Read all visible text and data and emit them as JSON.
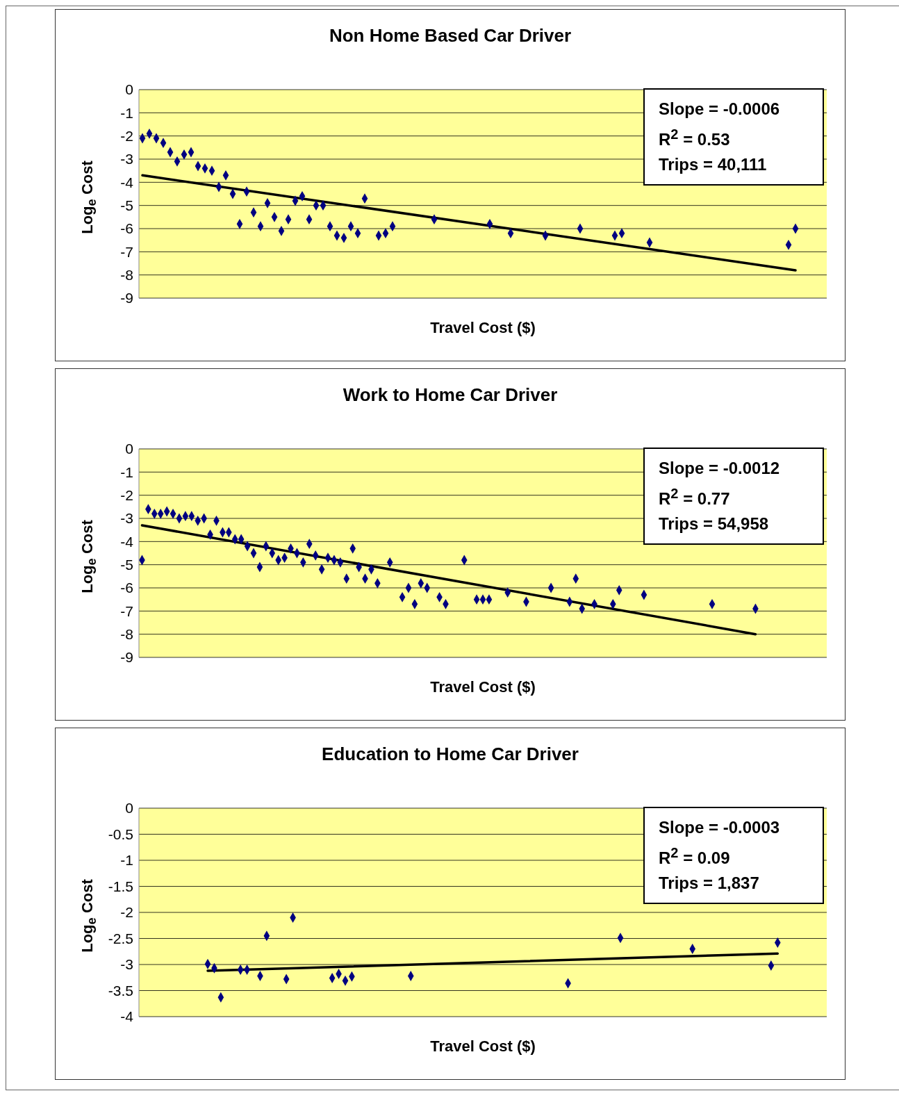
{
  "chart_data": [
    {
      "type": "scatter",
      "title": "Non Home Based Car Driver",
      "xlabel": "Travel Cost ($)",
      "ylabel": "Log$_{e}$ Cost",
      "annotations": [
        "Slope = -0.0006",
        "R$^{2}$ = 0.53",
        "Trips = 40,111"
      ],
      "ylim": [
        -9,
        0
      ],
      "yticks": [
        -9,
        -8,
        -7,
        -6,
        -5,
        -4,
        -3,
        -2,
        -1,
        0
      ],
      "grid": "y",
      "legend": false,
      "tick_labels": "y",
      "categories": [
        null,
        null,
        null,
        null,
        null,
        null,
        null,
        null,
        null,
        null,
        null,
        null,
        null,
        null,
        null,
        null,
        null,
        null,
        null,
        null,
        null,
        null,
        null,
        null,
        null,
        null,
        null,
        null,
        null,
        null,
        null,
        null,
        null,
        null,
        null,
        null,
        null,
        null,
        null,
        null,
        null,
        null,
        null,
        null,
        null,
        null,
        null,
        null,
        null,
        null,
        null,
        null,
        null,
        null,
        null,
        null,
        null,
        null,
        null,
        null,
        null,
        null,
        null,
        null,
        null,
        null,
        null,
        null,
        null,
        null,
        null,
        null,
        null,
        null,
        null,
        null,
        null,
        null,
        null,
        null,
        null,
        null,
        null,
        null,
        null,
        null,
        null,
        null,
        null,
        null,
        null,
        null,
        null,
        null,
        null,
        null,
        null,
        null,
        null
      ],
      "series": [
        {
          "type": "scatter",
          "marker": "diamond",
          "color": "#000080",
          "values": [
            -2.1,
            -1.9,
            -2.1,
            -2.3,
            -2.7,
            -3.1,
            -2.8,
            -2.7,
            -3.3,
            -3.4,
            -3.5,
            -4.2,
            -3.7,
            -4.5,
            -5.8,
            -4.4,
            -5.3,
            -5.9,
            -4.9,
            -5.5,
            -6.1,
            -5.6,
            -4.8,
            -4.6,
            -5.6,
            -5.0,
            -5.0,
            -5.9,
            -6.3,
            -6.4,
            -5.9,
            -6.2,
            -4.7,
            null,
            -6.3,
            -6.2,
            -5.9,
            null,
            null,
            null,
            null,
            null,
            -5.6,
            null,
            null,
            null,
            null,
            null,
            null,
            null,
            -5.8,
            null,
            null,
            -6.2,
            null,
            null,
            null,
            null,
            -6.3,
            null,
            null,
            null,
            null,
            -6.0,
            null,
            null,
            null,
            null,
            -6.3,
            -6.2,
            null,
            null,
            null,
            -6.6,
            null,
            null,
            null,
            null,
            null,
            null,
            null,
            null,
            null,
            null,
            null,
            null,
            null,
            null,
            null,
            null,
            null,
            null,
            null,
            -6.7,
            -6.0,
            null,
            null,
            null,
            null
          ]
        },
        {
          "type": "line",
          "color": "#000000",
          "values": [
            -3.7,
            null,
            null,
            null,
            null,
            null,
            null,
            null,
            null,
            null,
            null,
            null,
            null,
            null,
            null,
            null,
            null,
            null,
            null,
            null,
            null,
            null,
            null,
            null,
            null,
            null,
            null,
            null,
            null,
            null,
            null,
            null,
            null,
            null,
            null,
            null,
            null,
            null,
            null,
            null,
            null,
            null,
            null,
            null,
            null,
            null,
            null,
            null,
            null,
            null,
            null,
            null,
            null,
            null,
            null,
            null,
            null,
            null,
            null,
            null,
            null,
            null,
            null,
            null,
            null,
            null,
            null,
            null,
            null,
            null,
            null,
            null,
            null,
            null,
            null,
            null,
            null,
            null,
            null,
            null,
            null,
            null,
            null,
            null,
            null,
            null,
            null,
            null,
            null,
            null,
            null,
            null,
            null,
            null,
            -7.8,
            null,
            null,
            null,
            null
          ]
        }
      ]
    },
    {
      "type": "scatter",
      "title": "Work to Home Car Driver",
      "xlabel": "Travel Cost ($)",
      "ylabel": "Log$_{e}$ Cost",
      "annotations": [
        "Slope = -0.0012",
        "R$^{2}$ = 0.77",
        "Trips = 54,958"
      ],
      "ylim": [
        -9,
        0
      ],
      "yticks": [
        -9,
        -8,
        -7,
        -6,
        -5,
        -4,
        -3,
        -2,
        -1,
        0
      ],
      "grid": "y",
      "legend": false,
      "tick_labels": "y",
      "categories": [
        null,
        null,
        null,
        null,
        null,
        null,
        null,
        null,
        null,
        null,
        null,
        null,
        null,
        null,
        null,
        null,
        null,
        null,
        null,
        null,
        null,
        null,
        null,
        null,
        null,
        null,
        null,
        null,
        null,
        null,
        null,
        null,
        null,
        null,
        null,
        null,
        null,
        null,
        null,
        null,
        null,
        null,
        null,
        null,
        null,
        null,
        null,
        null,
        null,
        null,
        null,
        null,
        null,
        null,
        null,
        null,
        null,
        null,
        null,
        null,
        null,
        null,
        null,
        null,
        null,
        null,
        null,
        null,
        null,
        null,
        null,
        null,
        null,
        null,
        null,
        null,
        null,
        null,
        null,
        null,
        null,
        null,
        null,
        null,
        null,
        null,
        null,
        null,
        null,
        null,
        null,
        null,
        null,
        null,
        null,
        null,
        null,
        null,
        null,
        null,
        null,
        null,
        null,
        null,
        null,
        null,
        null,
        null,
        null,
        null,
        null
      ],
      "series": [
        {
          "type": "scatter",
          "marker": "diamond",
          "color": "#000080",
          "values": [
            -4.8,
            -2.6,
            -2.8,
            -2.8,
            -2.7,
            -2.8,
            -3.0,
            -2.9,
            -2.9,
            -3.1,
            -3.0,
            -3.7,
            -3.1,
            -3.6,
            -3.6,
            -3.9,
            -3.9,
            -4.2,
            -4.5,
            -5.1,
            -4.2,
            -4.5,
            -4.8,
            -4.7,
            -4.3,
            -4.5,
            -4.9,
            -4.1,
            -4.6,
            -5.2,
            -4.7,
            -4.8,
            -4.9,
            -5.6,
            -4.3,
            -5.1,
            -5.6,
            -5.2,
            -5.8,
            null,
            -4.9,
            null,
            -6.4,
            -6.0,
            -6.7,
            -5.8,
            -6.0,
            null,
            -6.4,
            -6.7,
            null,
            null,
            -4.8,
            null,
            -6.5,
            -6.5,
            -6.5,
            null,
            null,
            -6.2,
            null,
            null,
            -6.6,
            null,
            null,
            null,
            -6.0,
            null,
            null,
            -6.6,
            -5.6,
            -6.9,
            null,
            -6.7,
            null,
            null,
            -6.7,
            -6.1,
            null,
            null,
            null,
            -6.3,
            null,
            null,
            null,
            null,
            null,
            null,
            null,
            null,
            null,
            null,
            -6.7,
            null,
            null,
            null,
            null,
            null,
            null,
            -6.9,
            null,
            null,
            null,
            null,
            null,
            null,
            null,
            null,
            null,
            null,
            null
          ]
        },
        {
          "type": "line",
          "color": "#000000",
          "values": [
            -3.3,
            null,
            null,
            null,
            null,
            null,
            null,
            null,
            null,
            null,
            null,
            null,
            null,
            null,
            null,
            null,
            null,
            null,
            null,
            null,
            null,
            null,
            null,
            null,
            null,
            null,
            null,
            null,
            null,
            null,
            null,
            null,
            null,
            null,
            null,
            null,
            null,
            null,
            null,
            null,
            null,
            null,
            null,
            null,
            null,
            null,
            null,
            null,
            null,
            null,
            null,
            null,
            null,
            null,
            null,
            null,
            null,
            null,
            null,
            null,
            null,
            null,
            null,
            null,
            null,
            null,
            null,
            null,
            null,
            null,
            null,
            null,
            null,
            null,
            null,
            null,
            null,
            null,
            null,
            null,
            null,
            null,
            null,
            null,
            null,
            null,
            null,
            null,
            null,
            null,
            null,
            null,
            null,
            null,
            null,
            null,
            null,
            null,
            null,
            -8.0,
            null,
            null,
            null,
            null,
            null,
            null,
            null,
            null,
            null,
            null,
            null
          ]
        }
      ]
    },
    {
      "type": "scatter",
      "title": "Education to Home Car Driver",
      "xlabel": "Travel Cost ($)",
      "ylabel": "Log$_{e}$ Cost",
      "annotations": [
        "Slope = -0.0003",
        "R$^{2}$ = 0.09",
        "Trips = 1,837"
      ],
      "ylim": [
        -4,
        0
      ],
      "yticks": [
        -4,
        -3.5,
        -3,
        -2.5,
        -2,
        -1.5,
        -1,
        -0.5,
        0
      ],
      "grid": "y",
      "legend": false,
      "tick_labels": "y",
      "categories": [
        null,
        null,
        null,
        null,
        null,
        null,
        null,
        null,
        null,
        null,
        null,
        null,
        null,
        null,
        null,
        null,
        null,
        null,
        null,
        null,
        null,
        null,
        null,
        null,
        null,
        null,
        null,
        null,
        null,
        null,
        null,
        null,
        null,
        null,
        null,
        null,
        null,
        null,
        null,
        null,
        null,
        null,
        null,
        null,
        null,
        null,
        null,
        null,
        null,
        null,
        null,
        null,
        null,
        null,
        null,
        null,
        null,
        null,
        null,
        null,
        null,
        null,
        null,
        null,
        null,
        null,
        null,
        null,
        null,
        null,
        null,
        null,
        null,
        null,
        null,
        null,
        null,
        null,
        null,
        null,
        null,
        null,
        null,
        null,
        null,
        null,
        null,
        null,
        null,
        null,
        null,
        null,
        null,
        null,
        null,
        null,
        null,
        null,
        null,
        null,
        null,
        null,
        null,
        null,
        null
      ],
      "series": [
        {
          "type": "scatter",
          "marker": "diamond",
          "color": "#000080",
          "values": [
            null,
            null,
            null,
            null,
            null,
            null,
            null,
            null,
            null,
            null,
            -2.99,
            -3.07,
            -3.63,
            null,
            null,
            -3.1,
            -3.1,
            null,
            -3.22,
            -2.45,
            null,
            null,
            -3.28,
            -2.1,
            null,
            null,
            null,
            null,
            null,
            -3.26,
            -3.18,
            -3.31,
            -3.23,
            null,
            null,
            null,
            null,
            null,
            null,
            null,
            null,
            -3.22,
            null,
            null,
            null,
            null,
            null,
            null,
            null,
            null,
            null,
            null,
            null,
            null,
            null,
            null,
            null,
            null,
            null,
            null,
            null,
            null,
            null,
            null,
            null,
            -3.36,
            null,
            null,
            null,
            null,
            null,
            null,
            null,
            -2.49,
            null,
            null,
            null,
            null,
            null,
            null,
            null,
            null,
            null,
            null,
            -2.7,
            null,
            null,
            null,
            null,
            null,
            null,
            null,
            null,
            null,
            null,
            null,
            -3.02,
            -2.58,
            null,
            null,
            null,
            null,
            null,
            null,
            null
          ]
        },
        {
          "type": "line",
          "color": "#000000",
          "values": [
            null,
            null,
            null,
            null,
            null,
            null,
            null,
            null,
            null,
            null,
            -3.12,
            null,
            null,
            null,
            null,
            null,
            null,
            null,
            null,
            null,
            null,
            null,
            null,
            null,
            null,
            null,
            null,
            null,
            null,
            null,
            null,
            null,
            null,
            null,
            null,
            null,
            null,
            null,
            null,
            null,
            null,
            null,
            null,
            null,
            null,
            null,
            null,
            null,
            null,
            null,
            null,
            null,
            null,
            null,
            null,
            null,
            null,
            null,
            null,
            null,
            null,
            null,
            null,
            null,
            null,
            null,
            null,
            null,
            null,
            null,
            null,
            null,
            null,
            null,
            null,
            null,
            null,
            null,
            null,
            null,
            null,
            null,
            null,
            null,
            null,
            null,
            null,
            null,
            null,
            null,
            null,
            null,
            null,
            null,
            null,
            null,
            null,
            -2.79,
            null,
            null,
            null,
            null,
            null,
            null,
            null
          ]
        }
      ]
    }
  ]
}
